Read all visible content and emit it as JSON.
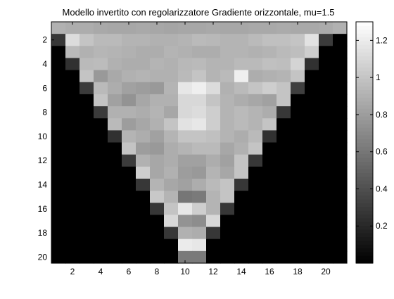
{
  "chart_data": {
    "type": "heatmap",
    "title": "Modello invertito con regolarizzatore Gradiente orizzontale, mu=1.5",
    "xlabel": "",
    "ylabel": "",
    "colormap": "gray",
    "clim": [
      0,
      1.3
    ],
    "x_ticks": [
      2,
      4,
      6,
      8,
      10,
      12,
      14,
      16,
      18,
      20
    ],
    "y_ticks": [
      2,
      4,
      6,
      8,
      10,
      12,
      14,
      16,
      18,
      20
    ],
    "colorbar": {
      "ticks": [
        0.2,
        0.4,
        0.6,
        0.8,
        1,
        1.2
      ],
      "tick_labels": [
        "0.2",
        "0.4",
        "0.6",
        "0.8",
        "1",
        "1.2"
      ],
      "position": "right"
    },
    "matrix": [
      [
        0.9,
        0.88,
        0.88,
        0.86,
        0.85,
        0.85,
        0.86,
        0.85,
        0.84,
        0.85,
        0.85,
        0.86,
        0.85,
        0.85,
        0.86,
        0.86,
        0.87,
        0.86,
        0.86,
        0.87,
        0.9
      ],
      [
        0.28,
        1.12,
        1.0,
        0.95,
        0.95,
        0.92,
        0.92,
        0.9,
        0.9,
        0.92,
        0.95,
        0.94,
        0.92,
        0.92,
        0.95,
        0.98,
        0.98,
        1.0,
        1.15,
        0.3,
        0.0
      ],
      [
        0.0,
        0.95,
        0.9,
        0.93,
        0.92,
        0.9,
        0.88,
        0.88,
        0.92,
        0.9,
        0.88,
        0.88,
        0.92,
        0.92,
        0.9,
        0.92,
        0.95,
        0.97,
        1.05,
        0.0,
        0.0
      ],
      [
        0.0,
        0.25,
        0.95,
        0.96,
        0.9,
        0.88,
        0.88,
        0.92,
        0.9,
        0.94,
        0.95,
        0.92,
        0.92,
        0.95,
        0.95,
        0.98,
        0.97,
        1.08,
        0.25,
        0.0,
        0.0
      ],
      [
        0.0,
        0.0,
        1.0,
        0.78,
        0.86,
        0.9,
        0.92,
        0.9,
        0.9,
        0.95,
        1.0,
        0.92,
        0.95,
        1.22,
        0.88,
        0.9,
        0.92,
        1.0,
        0.0,
        0.0,
        0.0
      ],
      [
        0.0,
        0.0,
        0.3,
        0.95,
        0.88,
        0.82,
        0.8,
        0.78,
        0.92,
        1.18,
        1.22,
        1.12,
        0.9,
        0.95,
        1.0,
        1.05,
        1.0,
        0.32,
        0.0,
        0.0,
        0.0
      ],
      [
        0.0,
        0.0,
        0.0,
        1.0,
        0.82,
        0.75,
        0.85,
        0.9,
        0.9,
        1.1,
        1.1,
        1.0,
        0.92,
        0.88,
        0.85,
        0.82,
        1.0,
        0.0,
        0.0,
        0.0,
        0.0
      ],
      [
        0.0,
        0.0,
        0.0,
        0.3,
        0.9,
        0.9,
        0.88,
        0.92,
        0.85,
        1.1,
        1.12,
        1.05,
        0.92,
        0.95,
        0.92,
        0.88,
        0.28,
        0.0,
        0.0,
        0.0,
        0.0
      ],
      [
        0.0,
        0.0,
        0.0,
        0.0,
        0.95,
        0.8,
        0.85,
        0.9,
        1.0,
        1.15,
        1.18,
        1.05,
        0.92,
        0.95,
        0.92,
        1.0,
        0.0,
        0.0,
        0.0,
        0.0,
        0.0
      ],
      [
        0.0,
        0.0,
        0.0,
        0.0,
        0.25,
        0.92,
        0.88,
        0.82,
        0.92,
        1.0,
        1.0,
        0.98,
        0.92,
        0.88,
        0.95,
        0.25,
        0.0,
        0.0,
        0.0,
        0.0,
        0.0
      ],
      [
        0.0,
        0.0,
        0.0,
        0.0,
        0.0,
        1.0,
        0.8,
        0.78,
        0.88,
        0.92,
        0.95,
        0.95,
        0.85,
        0.9,
        1.0,
        0.0,
        0.0,
        0.0,
        0.0,
        0.0,
        0.0
      ],
      [
        0.0,
        0.0,
        0.0,
        0.0,
        0.0,
        0.3,
        0.9,
        0.85,
        0.88,
        0.82,
        0.82,
        0.88,
        0.82,
        1.0,
        0.28,
        0.0,
        0.0,
        0.0,
        0.0,
        0.0,
        0.0
      ],
      [
        0.0,
        0.0,
        0.0,
        0.0,
        0.0,
        0.0,
        1.05,
        0.85,
        0.9,
        0.8,
        0.78,
        0.92,
        0.85,
        1.0,
        0.0,
        0.0,
        0.0,
        0.0,
        0.0,
        0.0,
        0.0
      ],
      [
        0.0,
        0.0,
        0.0,
        0.0,
        0.0,
        0.0,
        0.28,
        0.92,
        0.85,
        0.82,
        0.88,
        0.95,
        1.0,
        0.28,
        0.0,
        0.0,
        0.0,
        0.0,
        0.0,
        0.0,
        0.0
      ],
      [
        0.0,
        0.0,
        0.0,
        0.0,
        0.0,
        0.0,
        0.0,
        1.02,
        0.92,
        0.6,
        0.62,
        0.92,
        1.0,
        0.0,
        0.0,
        0.0,
        0.0,
        0.0,
        0.0,
        0.0,
        0.0
      ],
      [
        0.0,
        0.0,
        0.0,
        0.0,
        0.0,
        0.0,
        0.0,
        0.28,
        1.0,
        1.18,
        1.05,
        0.92,
        0.28,
        0.0,
        0.0,
        0.0,
        0.0,
        0.0,
        0.0,
        0.0,
        0.0
      ],
      [
        0.0,
        0.0,
        0.0,
        0.0,
        0.0,
        0.0,
        0.0,
        0.0,
        1.1,
        0.75,
        0.72,
        1.1,
        0.0,
        0.0,
        0.0,
        0.0,
        0.0,
        0.0,
        0.0,
        0.0,
        0.0
      ],
      [
        0.0,
        0.0,
        0.0,
        0.0,
        0.0,
        0.0,
        0.0,
        0.0,
        0.28,
        0.9,
        0.88,
        0.28,
        0.0,
        0.0,
        0.0,
        0.0,
        0.0,
        0.0,
        0.0,
        0.0,
        0.0
      ],
      [
        0.0,
        0.0,
        0.0,
        0.0,
        0.0,
        0.0,
        0.0,
        0.0,
        0.0,
        1.2,
        1.18,
        0.0,
        0.0,
        0.0,
        0.0,
        0.0,
        0.0,
        0.0,
        0.0,
        0.0,
        0.0
      ],
      [
        0.0,
        0.0,
        0.0,
        0.0,
        0.0,
        0.0,
        0.0,
        0.0,
        0.0,
        0.62,
        0.62,
        0.0,
        0.0,
        0.0,
        0.0,
        0.0,
        0.0,
        0.0,
        0.0,
        0.0,
        0.0
      ]
    ]
  }
}
